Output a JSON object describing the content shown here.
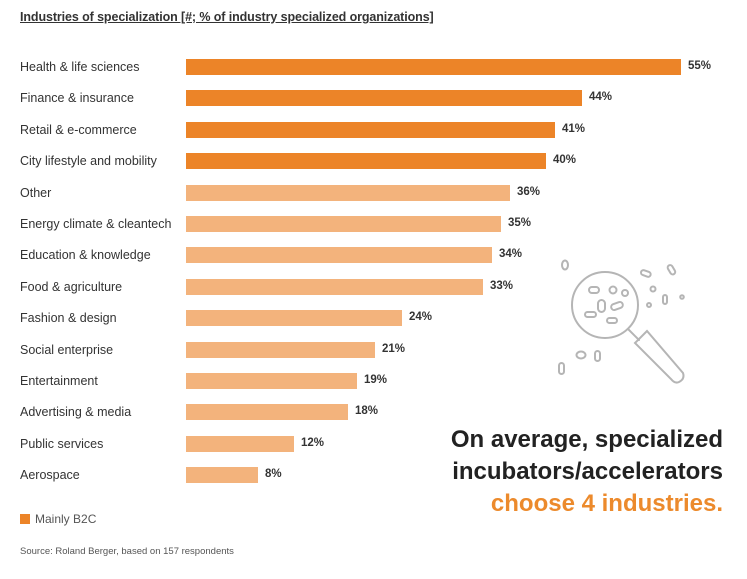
{
  "colors": {
    "b2c": "#ec8428",
    "other": "#f3b37c"
  },
  "chart_data": {
    "type": "bar",
    "orientation": "horizontal",
    "title": "Industries of specialization [#; % of industry specialized organizations]",
    "categories": [
      "Health & life sciences",
      "Finance & insurance",
      "Retail & e-commerce",
      "City lifestyle and mobility",
      "Other",
      "Energy climate & cleantech",
      "Education & knowledge",
      "Food & agriculture",
      "Fashion & design",
      "Social enterprise",
      "Entertainment",
      "Advertising & media",
      "Public services",
      "Aerospace"
    ],
    "values": [
      55,
      44,
      41,
      40,
      36,
      35,
      34,
      33,
      24,
      21,
      19,
      18,
      12,
      8
    ],
    "value_labels": [
      "55%",
      "44%",
      "41%",
      "40%",
      "36%",
      "35%",
      "34%",
      "33%",
      "24%",
      "21%",
      "19%",
      "18%",
      "12%",
      "8%"
    ],
    "mainly_b2c": [
      true,
      true,
      true,
      true,
      false,
      false,
      false,
      false,
      false,
      false,
      false,
      false,
      false,
      false
    ],
    "xlim": [
      0,
      55
    ],
    "legend": {
      "label": "Mainly B2C",
      "position": "bottom-left"
    }
  },
  "callout": {
    "line1": "On average, specialized",
    "line2": "incubators/accelerators",
    "highlight": "choose 4 industries."
  },
  "source": "Source: Roland Berger, based on 157 respondents",
  "icon": "magnifier-bacteria-icon"
}
